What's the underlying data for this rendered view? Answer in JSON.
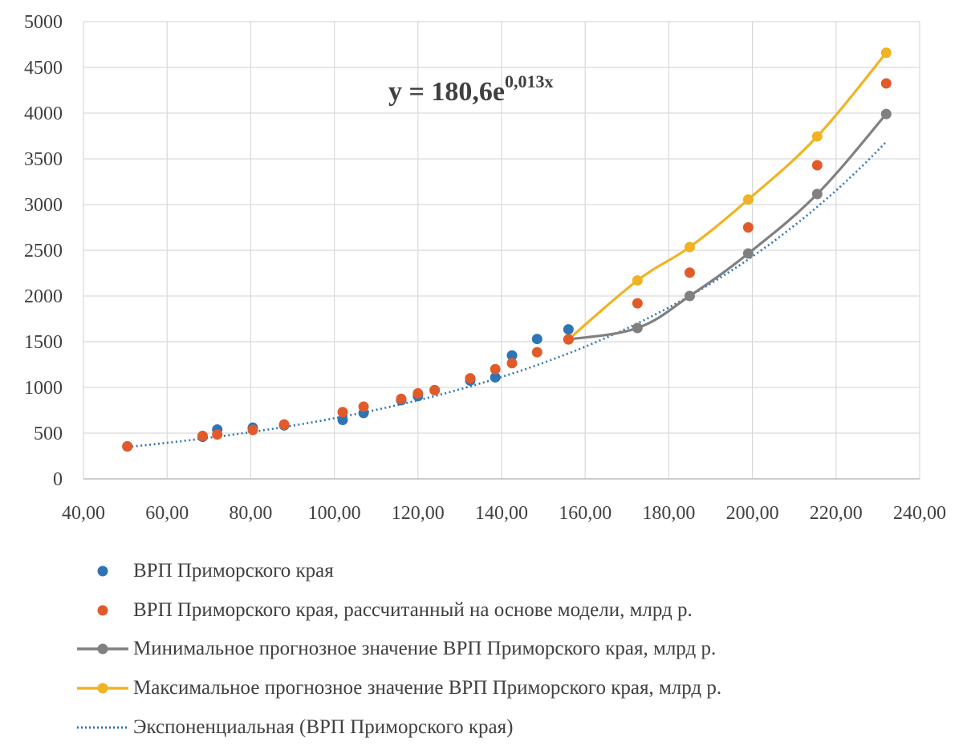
{
  "chart_data": {
    "type": "scatter",
    "title": "",
    "xlabel": "",
    "ylabel": "",
    "xlim": [
      40,
      240
    ],
    "ylim": [
      0,
      5000
    ],
    "x_ticks": [
      "40,00",
      "60,00",
      "80,00",
      "100,00",
      "120,00",
      "140,00",
      "160,00",
      "180,00",
      "200,00",
      "220,00",
      "240,00"
    ],
    "y_ticks": [
      "0",
      "500",
      "1000",
      "1500",
      "2000",
      "2500",
      "3000",
      "3500",
      "4000",
      "4500",
      "5000"
    ],
    "grid": true,
    "annotation": {
      "base": "y = 180,6e",
      "exponent": "0,013x"
    },
    "series": [
      {
        "name": "ВРП Приморского края",
        "kind": "markers",
        "color": "#2E75B6",
        "points": [
          [
            50.5,
            355
          ],
          [
            68.5,
            460
          ],
          [
            72,
            540
          ],
          [
            80.5,
            560
          ],
          [
            88,
            585
          ],
          [
            102,
            645
          ],
          [
            107,
            720
          ],
          [
            116,
            860
          ],
          [
            120,
            905
          ],
          [
            124,
            970
          ],
          [
            132.5,
            1075
          ],
          [
            138.5,
            1110
          ],
          [
            142.5,
            1350
          ],
          [
            148.5,
            1530
          ],
          [
            156,
            1635
          ]
        ]
      },
      {
        "name": "ВРП Приморского края, рассчитанный на основе модели, млрд р.",
        "kind": "markers",
        "color": "#E15B2A",
        "points": [
          [
            50.5,
            355
          ],
          [
            68.5,
            470
          ],
          [
            72,
            485
          ],
          [
            80.5,
            535
          ],
          [
            88,
            595
          ],
          [
            102,
            730
          ],
          [
            107,
            790
          ],
          [
            116,
            875
          ],
          [
            120,
            935
          ],
          [
            124,
            970
          ],
          [
            132.5,
            1100
          ],
          [
            138.5,
            1200
          ],
          [
            142.5,
            1265
          ],
          [
            148.5,
            1385
          ],
          [
            156,
            1525
          ],
          [
            172.5,
            1920
          ],
          [
            185,
            2255
          ],
          [
            199,
            2750
          ],
          [
            215.5,
            3430
          ],
          [
            232,
            4325
          ]
        ]
      },
      {
        "name": "Минимальное прогнозное значение ВРП  Приморского края, млрд р.",
        "kind": "line-markers",
        "color": "#808080",
        "points": [
          [
            156,
            1525
          ],
          [
            172.5,
            1650
          ],
          [
            185,
            2000
          ],
          [
            199,
            2465
          ],
          [
            215.5,
            3115
          ],
          [
            232,
            3990
          ]
        ]
      },
      {
        "name": "Максимальное прогнозное значение ВРП Приморского края, млрд р.",
        "kind": "line-markers",
        "color": "#F0B323",
        "points": [
          [
            156,
            1525
          ],
          [
            172.5,
            2170
          ],
          [
            185,
            2535
          ],
          [
            199,
            3055
          ],
          [
            215.5,
            3745
          ],
          [
            232,
            4660
          ]
        ]
      },
      {
        "name": "Экспоненциальная (ВРП Приморского края)",
        "kind": "trend",
        "color": "#2E75B6",
        "a": 180.6,
        "b": 0.013,
        "x_from": 50.5,
        "x_to": 232
      }
    ]
  }
}
